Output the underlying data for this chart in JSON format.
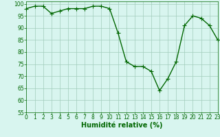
{
  "x": [
    0,
    1,
    2,
    3,
    4,
    5,
    6,
    7,
    8,
    9,
    10,
    11,
    12,
    13,
    14,
    15,
    16,
    17,
    18,
    19,
    20,
    21,
    22,
    23
  ],
  "y": [
    98,
    99,
    99,
    96,
    97,
    98,
    98,
    98,
    99,
    99,
    98,
    88,
    76,
    74,
    74,
    72,
    64,
    69,
    76,
    91,
    95,
    94,
    91,
    85
  ],
  "line_color": "#006600",
  "marker": "+",
  "marker_color": "#006600",
  "bg_color": "#d8f5ef",
  "grid_color": "#a0ccbb",
  "xlabel": "Humidité relative (%)",
  "xlabel_color": "#006600",
  "ylim": [
    55,
    101
  ],
  "yticks": [
    55,
    60,
    65,
    70,
    75,
    80,
    85,
    90,
    95,
    100
  ],
  "xticks": [
    0,
    1,
    2,
    3,
    4,
    5,
    6,
    7,
    8,
    9,
    10,
    11,
    12,
    13,
    14,
    15,
    16,
    17,
    18,
    19,
    20,
    21,
    22,
    23
  ],
  "tick_color": "#006600",
  "tick_label_color": "#006600",
  "font_size_xlabel": 7,
  "font_size_ticks": 5.5,
  "line_width": 1.0,
  "marker_size": 4
}
